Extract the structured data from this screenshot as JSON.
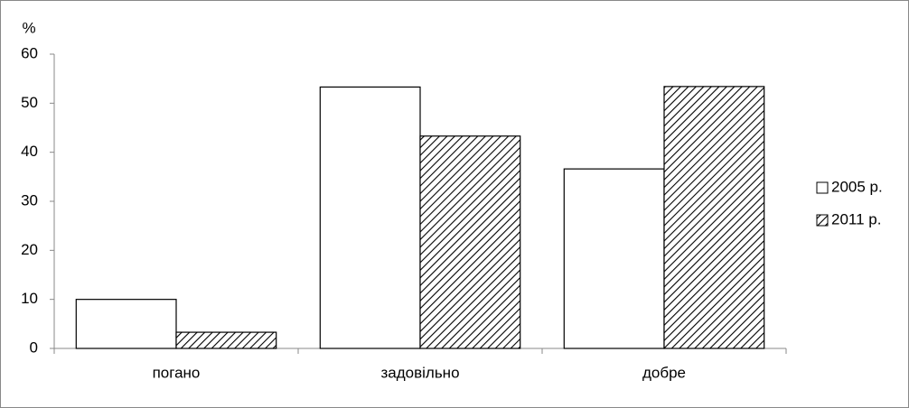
{
  "chart_data": {
    "type": "bar",
    "y_label": "%",
    "categories": [
      "погано",
      "задовільно",
      "добре"
    ],
    "series": [
      {
        "name": "2005 р.",
        "color": "#ffffff",
        "values": [
          10,
          53.3,
          36.6
        ]
      },
      {
        "name": "2011 р.",
        "color": "#ffffff",
        "pattern": "hatch",
        "values": [
          3.3,
          43.3,
          53.4
        ]
      }
    ],
    "ylim": [
      0,
      60
    ],
    "yticks": [
      0,
      10,
      20,
      30,
      40,
      50,
      60
    ],
    "grid": false,
    "legend": "right"
  }
}
